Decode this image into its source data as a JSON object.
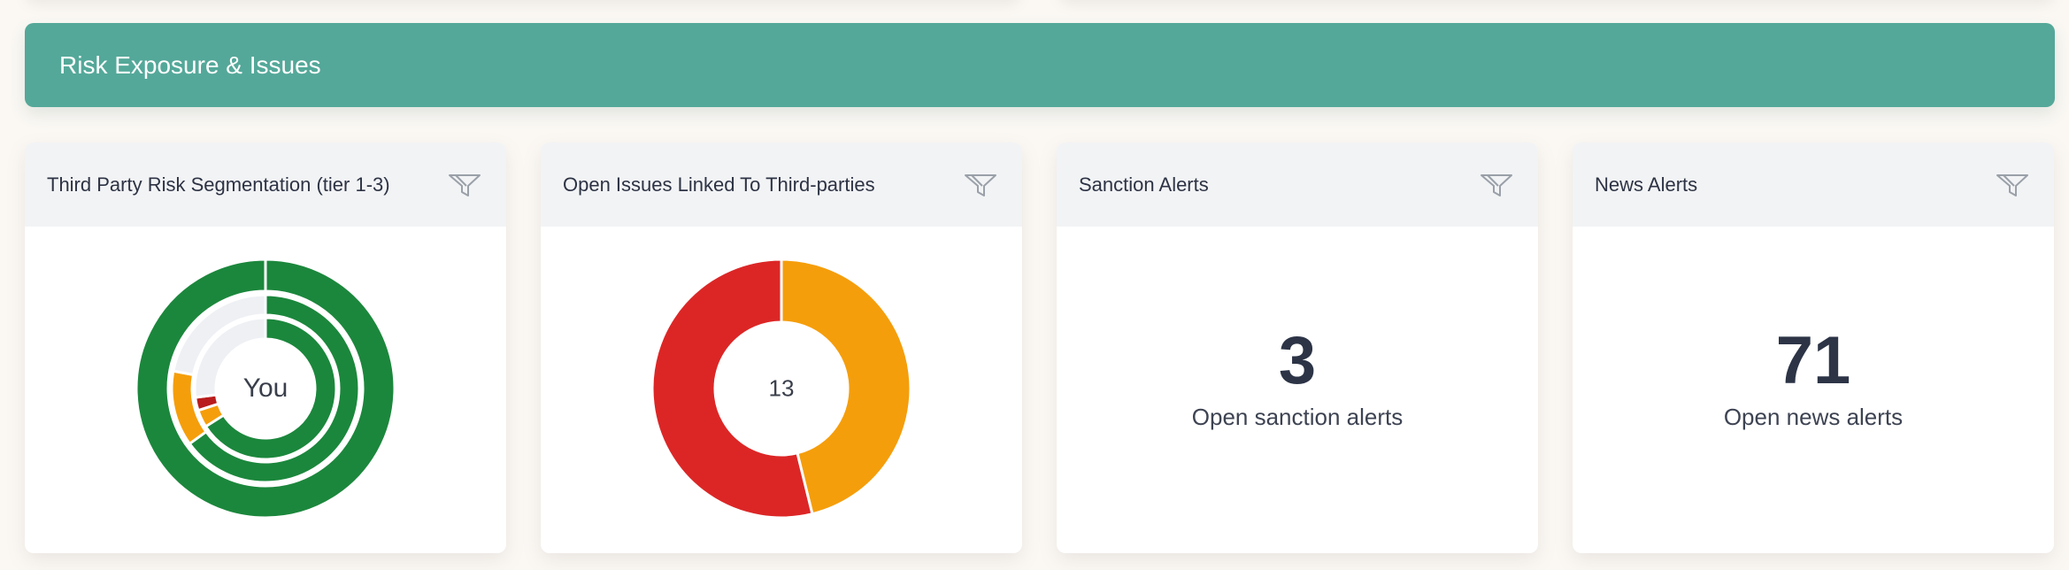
{
  "colors": {
    "banner": "#54a899",
    "page_background": "#fbf8f4",
    "card_header": "#f2f3f5",
    "green": "#1b873c",
    "orange": "#f59e0b",
    "red": "#dc2626",
    "dark_red": "#b91c1c",
    "empty_ring": "#eef0f4"
  },
  "section": {
    "title": "Risk Exposure & Issues"
  },
  "cards": [
    {
      "title": "Third Party Risk Segmentation (tier 1-3)",
      "filter_icon": "filter-icon",
      "center_label": "You"
    },
    {
      "title": "Open Issues Linked To Third-parties",
      "filter_icon": "filter-icon",
      "center_value": "13"
    },
    {
      "title": "Sanction Alerts",
      "filter_icon": "filter-icon",
      "value": "3",
      "caption": "Open sanction alerts"
    },
    {
      "title": "News Alerts",
      "filter_icon": "filter-icon",
      "value": "71",
      "caption": "Open news alerts"
    }
  ],
  "chart_data": [
    {
      "type": "pie",
      "chart": "sunburst",
      "center_label": "You",
      "rings": [
        {
          "level": 1,
          "slices": [
            {
              "color": "#1b873c",
              "value": 66
            },
            {
              "color": "#f59e0b",
              "value": 4
            },
            {
              "color": "#b91c1c",
              "value": 3
            },
            {
              "color": "#eef0f4",
              "value": 27
            }
          ]
        },
        {
          "level": 2,
          "slices": [
            {
              "color": "#1b873c",
              "value": 65
            },
            {
              "color": "#f59e0b",
              "value": 13
            },
            {
              "color": "#eef0f4",
              "value": 22
            }
          ]
        },
        {
          "level": 3,
          "slices": [
            {
              "color": "#1b873c",
              "value": 100
            }
          ]
        }
      ]
    },
    {
      "type": "pie",
      "chart": "donut",
      "center_value": "13",
      "slices": [
        {
          "color": "#f59e0b",
          "value": 6
        },
        {
          "color": "#dc2626",
          "value": 7
        }
      ]
    }
  ]
}
